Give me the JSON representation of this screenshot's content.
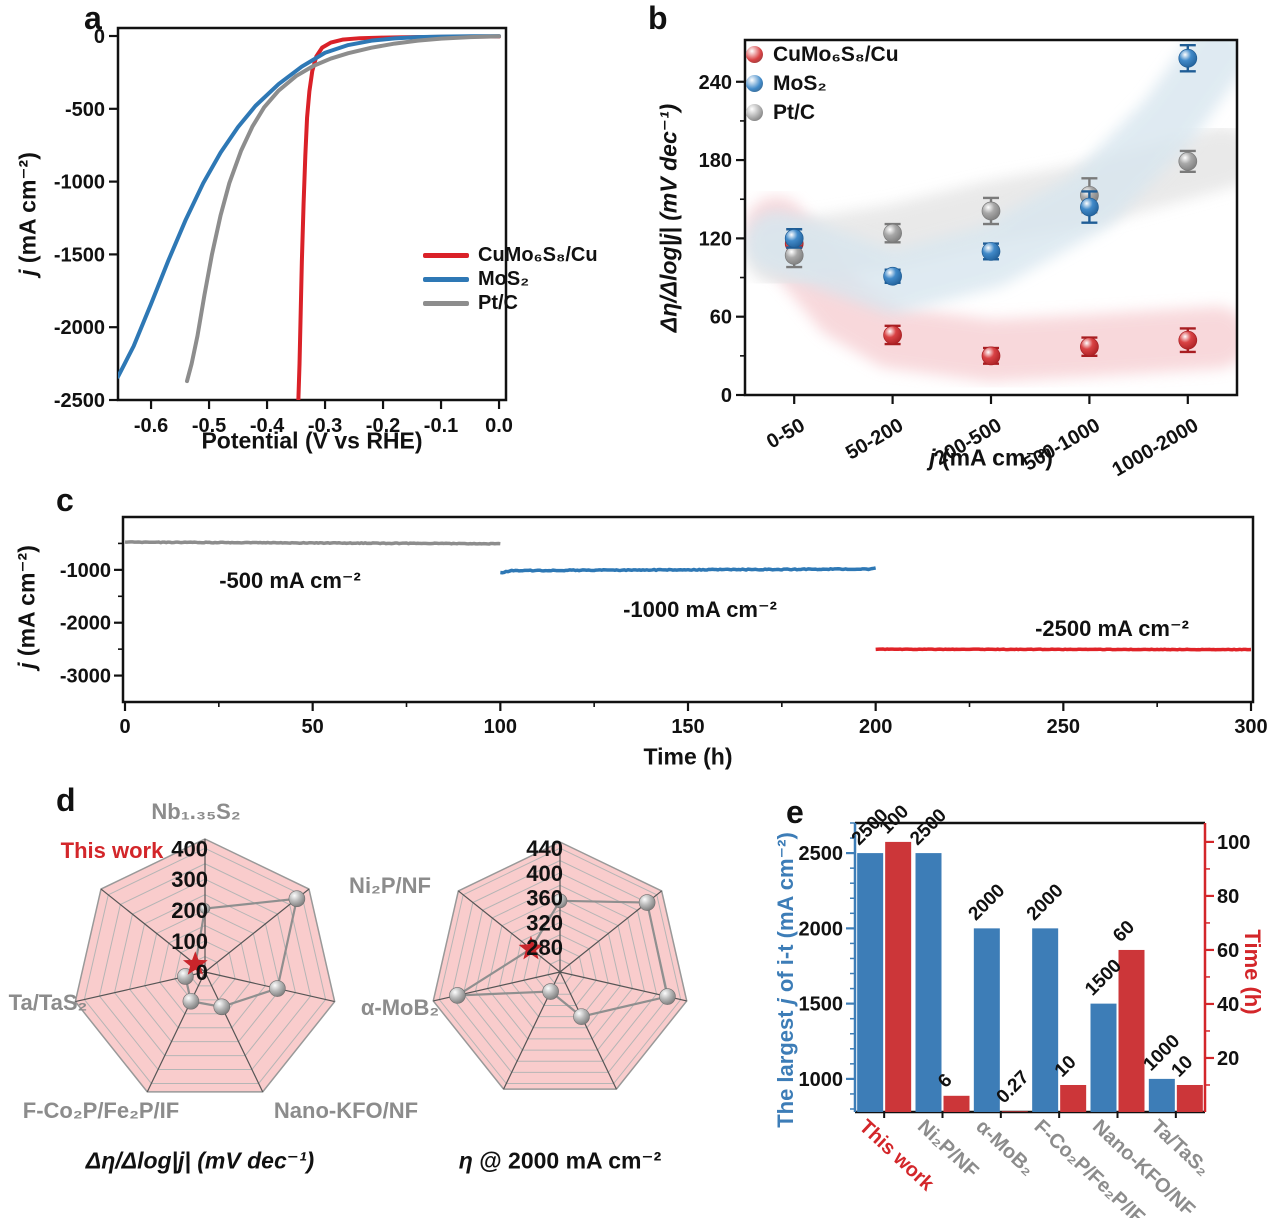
{
  "panel_labels": {
    "a": "a",
    "b": "b",
    "c": "c",
    "d": "d",
    "e": "e"
  },
  "texts": {
    "j": "j",
    "ma_cm2": " (mA cm⁻²)",
    "b_ylabel": "Δη/Δlog|j| (mV dec⁻¹)",
    "d_left_caption": "Δη/Δlog|j| (mV dec⁻¹)",
    "eta": "η",
    "d_right_caption_rest": " @ 2000 mA cm⁻²",
    "e_left_pre": "The largest ",
    "e_left_post": " of i-t (mA cm⁻²)"
  },
  "chart_data": [
    {
      "panel": "a",
      "type": "line",
      "xlabel": "Potential (V vs RHE)",
      "ylabel": "j (mA cm⁻²)",
      "xlim": [
        -0.657,
        0.012
      ],
      "ylim": [
        -2500,
        55
      ],
      "xticks": [
        -0.6,
        -0.5,
        -0.4,
        -0.3,
        -0.2,
        -0.1,
        0.0
      ],
      "xtick_labels": [
        "-0.6",
        "-0.5",
        "-0.4",
        "-0.3",
        "-0.2",
        "-0.1",
        "0.0"
      ],
      "yticks": [
        0,
        -500,
        -1000,
        -1500,
        -2000,
        -2500
      ],
      "ytick_labels": [
        "0",
        "-500",
        "-1000",
        "-1500",
        "-2000",
        "-2500"
      ],
      "series": [
        {
          "name": "CuMo₆S₈/Cu",
          "color": "#da2128",
          "points": [
            [
              0,
              -3
            ],
            [
              -0.05,
              -4
            ],
            [
              -0.1,
              -6
            ],
            [
              -0.15,
              -8
            ],
            [
              -0.2,
              -11
            ],
            [
              -0.24,
              -15
            ],
            [
              -0.27,
              -25
            ],
            [
              -0.29,
              -45
            ],
            [
              -0.305,
              -80
            ],
            [
              -0.315,
              -140
            ],
            [
              -0.322,
              -240
            ],
            [
              -0.327,
              -380
            ],
            [
              -0.331,
              -560
            ],
            [
              -0.334,
              -820
            ],
            [
              -0.337,
              -1150
            ],
            [
              -0.34,
              -1550
            ],
            [
              -0.342,
              -1900
            ],
            [
              -0.344,
              -2250
            ],
            [
              -0.346,
              -2500
            ]
          ]
        },
        {
          "name": "MoS₂",
          "color": "#2e78b5",
          "points": [
            [
              0,
              -1
            ],
            [
              -0.05,
              -2
            ],
            [
              -0.1,
              -4
            ],
            [
              -0.14,
              -8
            ],
            [
              -0.18,
              -16
            ],
            [
              -0.22,
              -32
            ],
            [
              -0.26,
              -62
            ],
            [
              -0.3,
              -115
            ],
            [
              -0.34,
              -210
            ],
            [
              -0.38,
              -330
            ],
            [
              -0.42,
              -480
            ],
            [
              -0.45,
              -625
            ],
            [
              -0.48,
              -800
            ],
            [
              -0.51,
              -1010
            ],
            [
              -0.54,
              -1260
            ],
            [
              -0.57,
              -1540
            ],
            [
              -0.6,
              -1840
            ],
            [
              -0.63,
              -2130
            ],
            [
              -0.657,
              -2340
            ]
          ]
        },
        {
          "name": "Pt/C",
          "color": "#8d8d8d",
          "points": [
            [
              0,
              -2
            ],
            [
              -0.05,
              -8
            ],
            [
              -0.1,
              -18
            ],
            [
              -0.14,
              -32
            ],
            [
              -0.18,
              -52
            ],
            [
              -0.22,
              -80
            ],
            [
              -0.26,
              -118
            ],
            [
              -0.29,
              -155
            ],
            [
              -0.32,
              -205
            ],
            [
              -0.35,
              -275
            ],
            [
              -0.38,
              -375
            ],
            [
              -0.405,
              -490
            ],
            [
              -0.425,
              -620
            ],
            [
              -0.445,
              -790
            ],
            [
              -0.465,
              -1010
            ],
            [
              -0.48,
              -1230
            ],
            [
              -0.495,
              -1500
            ],
            [
              -0.508,
              -1780
            ],
            [
              -0.52,
              -2060
            ],
            [
              -0.53,
              -2250
            ],
            [
              -0.538,
              -2370
            ]
          ]
        }
      ]
    },
    {
      "panel": "b",
      "type": "scatter",
      "xlabel": "j (mA cm⁻²)",
      "ylabel": "Δη/Δlog|j| (mV dec⁻¹)",
      "categories": [
        "0-50",
        "50-200",
        "200-500",
        "500-1000",
        "1000-2000"
      ],
      "ylim": [
        0,
        272
      ],
      "yticks": [
        0,
        60,
        120,
        180,
        240
      ],
      "minor_yticks": [
        30,
        90,
        150,
        210
      ],
      "series": [
        {
          "name": "CuMo₆S₈/Cu",
          "color": "#d94345",
          "dark": "#a81e22",
          "values": [
            116,
            46,
            30,
            37,
            42
          ],
          "errors": [
            6,
            7,
            6,
            7,
            9
          ]
        },
        {
          "name": "MoS₂",
          "color": "#418ac9",
          "dark": "#1f5d96",
          "values": [
            120,
            91,
            110,
            144,
            258
          ],
          "errors": [
            7,
            5,
            6,
            12,
            10
          ]
        },
        {
          "name": "Pt/C",
          "color": "#a8a8a8",
          "dark": "#7a7a7a",
          "values": [
            107,
            124,
            141,
            153,
            179
          ],
          "errors": [
            9,
            7,
            10,
            13,
            8
          ]
        }
      ],
      "bands": [
        {
          "color": "#f6ccd0",
          "opacity": 0.75,
          "points": [
            [
              -0.18,
              128
            ],
            [
              0.5,
              66
            ],
            [
              1,
              44
            ],
            [
              2,
              34
            ],
            [
              3,
              38
            ],
            [
              4.3,
              44
            ]
          ]
        },
        {
          "color": "#e4e4e4",
          "opacity": 0.8,
          "points": [
            [
              -0.18,
              108
            ],
            [
              1,
              122
            ],
            [
              2,
              140
            ],
            [
              3,
              154
            ],
            [
              4.35,
              182
            ]
          ]
        },
        {
          "color": "#d8e6ef",
          "opacity": 0.8,
          "points": [
            [
              -0.18,
              118
            ],
            [
              1,
              86
            ],
            [
              2,
              106
            ],
            [
              3,
              148
            ],
            [
              3.8,
              210
            ],
            [
              4.3,
              262
            ]
          ]
        }
      ]
    },
    {
      "panel": "c",
      "type": "line",
      "xlabel": "Time (h)",
      "ylabel": "j (mA cm⁻²)",
      "xlim": [
        0,
        300
      ],
      "ylim": [
        -3500,
        0
      ],
      "xticks": [
        0,
        50,
        100,
        150,
        200,
        250,
        300
      ],
      "xtick_labels": [
        "0",
        "50",
        "100",
        "150",
        "200",
        "250",
        "300"
      ],
      "minor_xticks": [
        25,
        75,
        125,
        175,
        225,
        275
      ],
      "yticks": [
        -1000,
        -2000,
        -3000
      ],
      "ytick_labels": [
        "-1000",
        "-2000",
        "-3000"
      ],
      "minor_yticks": [
        -500,
        -1500,
        -2500
      ],
      "segments": [
        {
          "label": "-500 mA cm⁻²",
          "color": "#8d8d8d",
          "x0": 0,
          "x1": 100,
          "base": -476,
          "slope": -0.3,
          "noise": 13,
          "seed": 7
        },
        {
          "label": "-1000 mA cm⁻²",
          "color": "#2e78b5",
          "x0": 100,
          "x1": 200,
          "base": -1014,
          "slope": 0.3,
          "dip": 14,
          "spike": 12,
          "noise": 17,
          "seed": 13
        },
        {
          "label": "-2500 mA cm⁻²",
          "color": "#e02227",
          "x0": 200,
          "x1": 300,
          "base": -2502,
          "slope": -0.06,
          "noise": 9,
          "seed": 21
        }
      ]
    },
    {
      "panel": "d-left",
      "type": "radar",
      "caption": "Δη/Δlog|j| (mV dec⁻¹)",
      "axes": [
        "Nb₁.₃₅S₂",
        "Ni₂P/NF",
        "α-MoB₂",
        "Nano-KFO/NF",
        "F-Co₂P/Fe₂P/IF",
        "Ta/TaS₂",
        "This work"
      ],
      "rmin": 0,
      "rmax": 430,
      "rings": [
        50,
        100,
        150,
        200,
        250,
        300,
        350,
        400
      ],
      "ring_label_values": [
        0,
        100,
        200,
        300,
        400
      ],
      "ring_labels": [
        "0",
        "100",
        "200",
        "300",
        "400"
      ],
      "values": [
        205,
        380,
        240,
        125,
        105,
        65,
        40
      ],
      "star_index": 6,
      "marker_r": [
        5,
        8,
        8,
        8,
        8,
        8,
        0
      ],
      "fill": "#f9cccc",
      "star_color": "#c9252b"
    },
    {
      "panel": "d-right",
      "type": "radar",
      "caption": "η @ 2000 mA cm⁻²",
      "axes": [
        "Nb₁.₃₅S₂",
        "Ni₂P/NF",
        "α-MoB₂",
        "Nano-KFO/NF",
        "F-Co₂P/Fe₂P/IF",
        "Ta/TaS₂",
        "This work"
      ],
      "rmin": 240,
      "rmax": 450,
      "rings": [
        260,
        280,
        300,
        320,
        340,
        360,
        380,
        400,
        420,
        440
      ],
      "ring_label_values": [
        280,
        320,
        360,
        400,
        440
      ],
      "ring_labels": [
        "280",
        "320",
        "360",
        "400",
        "440"
      ],
      "values": [
        355,
        420,
        418,
        320,
        275,
        410,
        300
      ],
      "star_index": 6,
      "marker_r": [
        7,
        8,
        8,
        8,
        8,
        8,
        0
      ],
      "fill": "#f9cccc",
      "star_color": "#c9252b"
    },
    {
      "panel": "e",
      "type": "bar",
      "categories": [
        "This work",
        "Ni₂P/NF",
        "α-MoB₂",
        "F-Co₂P/Fe₂P/IF",
        "Nano-KFO/NF",
        "Ta/TaS₂"
      ],
      "category_colors": [
        "#d3262a",
        "#8c8c8c",
        "#8c8c8c",
        "#8c8c8c",
        "#8c8c8c",
        "#8c8c8c"
      ],
      "left_label": "The largest j of i-t (mA cm⁻²)",
      "right_label": "Time (h)",
      "left_color": "#3d7db7",
      "right_color": "#d3262a",
      "bar_blue": "#3d7db7",
      "bar_red": "#cc3639",
      "left_ylim": [
        780,
        2700
      ],
      "left_yticks": [
        1000,
        1500,
        2000,
        2500
      ],
      "right_ylim": [
        0,
        107
      ],
      "right_yticks": [
        20,
        40,
        60,
        80,
        100
      ],
      "j_values": [
        2500,
        2500,
        2000,
        2000,
        1500,
        1000
      ],
      "j_value_labels": [
        "2500",
        "2500",
        "2000",
        "2000",
        "1500",
        "1000"
      ],
      "time_values": [
        100,
        6,
        0.27,
        10,
        60,
        10
      ],
      "time_value_labels": [
        "100",
        "6",
        "0.27",
        "10",
        "60",
        "10"
      ]
    }
  ]
}
